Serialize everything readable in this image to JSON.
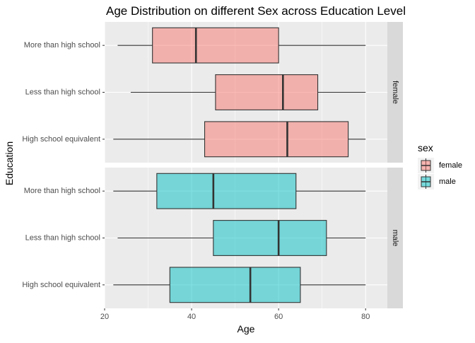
{
  "chart_data": {
    "type": "boxplot",
    "title": "Age Distribution on different Sex across Education Level",
    "xlabel": "Age",
    "ylabel": "Education",
    "xlim": [
      20,
      85
    ],
    "x_ticks": [
      20,
      40,
      60,
      80
    ],
    "categories": [
      "More than high school",
      "Less than high school",
      "High school equivalent"
    ],
    "grid": true,
    "legend": {
      "title": "sex",
      "position": "right",
      "entries": [
        {
          "label": "female",
          "color": "#F8766D"
        },
        {
          "label": "male",
          "color": "#00BFC4"
        }
      ]
    },
    "panels": [
      {
        "strip_label": "female",
        "sex": "female",
        "color": "#F8766D",
        "boxes": [
          {
            "category": "More than high school",
            "min": 23,
            "q1": 31,
            "median": 41,
            "q3": 60,
            "max": 80
          },
          {
            "category": "Less than high school",
            "min": 26,
            "q1": 45.5,
            "median": 61,
            "q3": 69,
            "max": 80
          },
          {
            "category": "High school equivalent",
            "min": 22,
            "q1": 43,
            "median": 62,
            "q3": 76,
            "max": 80
          }
        ]
      },
      {
        "strip_label": "male",
        "sex": "male",
        "color": "#00BFC4",
        "boxes": [
          {
            "category": "More than high school",
            "min": 22,
            "q1": 32,
            "median": 45,
            "q3": 64,
            "max": 80
          },
          {
            "category": "Less than high school",
            "min": 23,
            "q1": 45,
            "median": 60,
            "q3": 71,
            "max": 80
          },
          {
            "category": "High school equivalent",
            "min": 22,
            "q1": 35,
            "median": 53.5,
            "q3": 65,
            "max": 80
          }
        ]
      }
    ]
  }
}
